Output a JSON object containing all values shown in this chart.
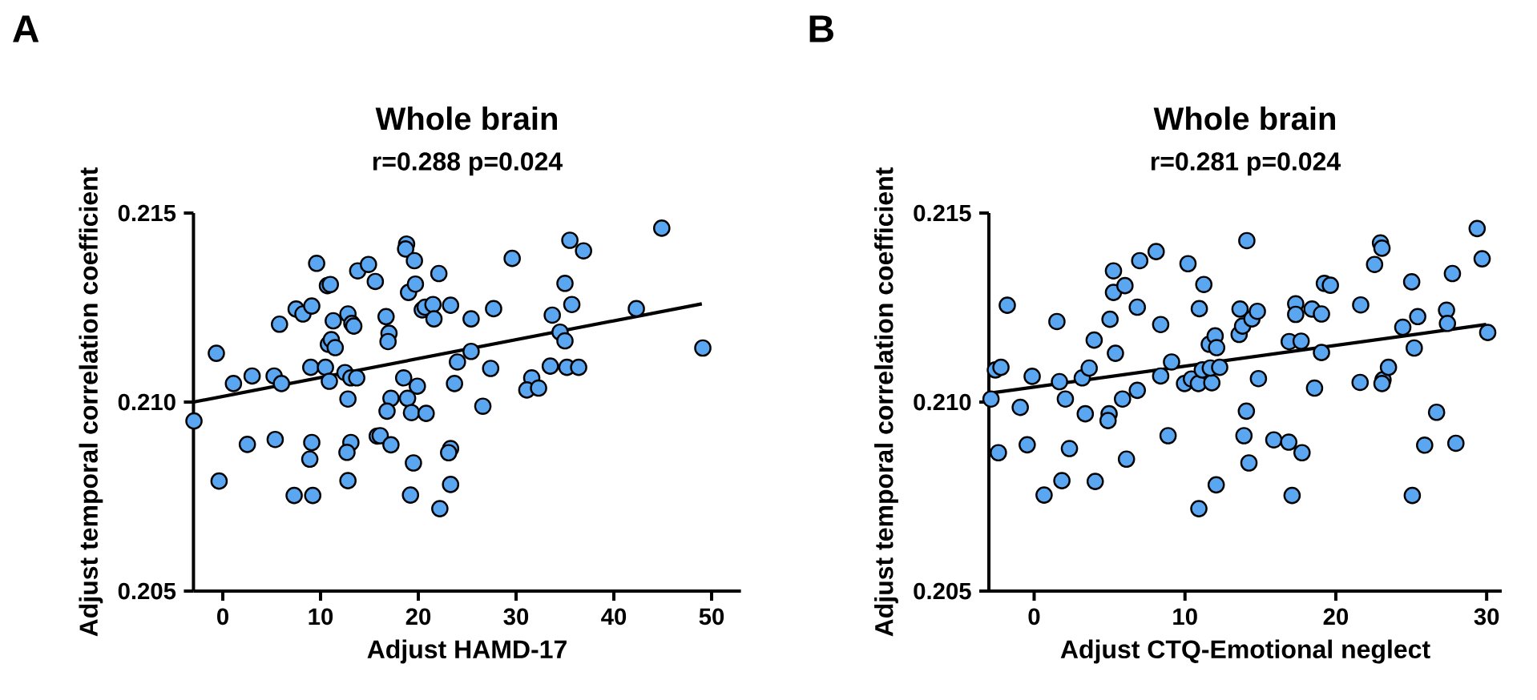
{
  "chart_data": [
    {
      "type": "scatter",
      "title": "Whole brain",
      "subtitle": "r=0.288  p=0.024",
      "xlabel": "Adjust HAMD-17",
      "ylabel": "Adjust temporal correlation coefficient",
      "annotations": [
        "A"
      ],
      "xlim": [
        -3,
        53
      ],
      "ylim": [
        0.205,
        0.215
      ],
      "xticks": [
        0,
        10,
        20,
        30,
        40,
        50
      ],
      "yticks": [
        {
          "value": 0.205,
          "label": "0.205"
        },
        {
          "value": 0.21,
          "label": "0.210"
        },
        {
          "value": 0.215,
          "label": "0.215"
        }
      ],
      "series": [
        {
          "marker": "circle",
          "color": "#5aa6f0",
          "x": [
            -2.95,
            -0.66,
            -0.38,
            1.09,
            2.51,
            3.0,
            5.25,
            5.36,
            6.0,
            5.8,
            7.3,
            7.5,
            8.2,
            9.1,
            9.0,
            9.1,
            8.9,
            9.2,
            9.6,
            10.5,
            10.7,
            11.0,
            10.9,
            11.3,
            10.8,
            11.1,
            11.5,
            12.5,
            12.8,
            13.2,
            13.4,
            13.1,
            13.7,
            12.8,
            13.1,
            12.7,
            12.8,
            13.8,
            14.9,
            15.6,
            16.7,
            17.0,
            16.9,
            15.8,
            16.1,
            17.2,
            16.8,
            17.2,
            18.5,
            18.8,
            18.7,
            19.6,
            19.0,
            19.7,
            20.4,
            20.7,
            21.5,
            21.6,
            22.1,
            23.3,
            19.9,
            18.9,
            19.3,
            20.8,
            19.5,
            19.2,
            22.2,
            23.3,
            23.1,
            23.3,
            24.0,
            23.7,
            25.4,
            25.4,
            27.7,
            27.4,
            26.6,
            29.6,
            33.7,
            34.5,
            35.0,
            33.5,
            35.2,
            36.4,
            31.6,
            31.1,
            32.3,
            35.0,
            35.7,
            35.5,
            36.9,
            42.3,
            44.9,
            49.1
          ],
          "values": [
            0.2095,
            0.21129,
            0.20791,
            0.21049,
            0.20888,
            0.21069,
            0.21069,
            0.20901,
            0.21049,
            0.21206,
            0.20753,
            0.21246,
            0.21233,
            0.21254,
            0.21092,
            0.20893,
            0.20849,
            0.20753,
            0.21367,
            0.21092,
            0.21308,
            0.21311,
            0.21055,
            0.21215,
            0.21153,
            0.21165,
            0.21144,
            0.21078,
            0.21233,
            0.21208,
            0.21201,
            0.21064,
            0.21064,
            0.21008,
            0.20893,
            0.20867,
            0.20792,
            0.21347,
            0.21364,
            0.21319,
            0.21226,
            0.21182,
            0.2116,
            0.2091,
            0.20911,
            0.2101,
            0.20976,
            0.20887,
            0.21064,
            0.21418,
            0.21405,
            0.21374,
            0.2129,
            0.21312,
            0.21244,
            0.21251,
            0.21258,
            0.2122,
            0.2134,
            0.21256,
            0.21042,
            0.2101,
            0.20972,
            0.2097,
            0.20839,
            0.20754,
            0.20718,
            0.20877,
            0.20866,
            0.20782,
            0.21106,
            0.21049,
            0.2122,
            0.21134,
            0.21247,
            0.21089,
            0.20989,
            0.2138,
            0.2123,
            0.21185,
            0.21162,
            0.21095,
            0.21092,
            0.21092,
            0.21064,
            0.21032,
            0.21037,
            0.21314,
            0.21258,
            0.21428,
            0.214,
            0.21247,
            0.2146,
            0.21143
          ]
        },
        {
          "type": "line",
          "marker": "none",
          "color": "#000000",
          "x": [
            -3,
            49
          ],
          "values": [
            0.21,
            0.2126
          ]
        }
      ]
    },
    {
      "type": "scatter",
      "title": "Whole brain",
      "subtitle": "r=0.281  p=0.024",
      "xlabel": "Adjust CTQ-Emotional neglect",
      "ylabel": "Adjust temporal correlation coefficient",
      "annotations": [
        "B"
      ],
      "xlim": [
        -3,
        31
      ],
      "ylim": [
        0.205,
        0.215
      ],
      "xticks": [
        0,
        10,
        20,
        30
      ],
      "yticks": [
        {
          "value": 0.205,
          "label": "0.205"
        },
        {
          "value": 0.21,
          "label": "0.210"
        },
        {
          "value": 0.215,
          "label": "0.215"
        }
      ],
      "series": [
        {
          "marker": "circle",
          "color": "#5aa6f0",
          "x": [
            -2.86,
            -2.57,
            -2.2,
            -1.78,
            -2.37,
            -0.92,
            -0.46,
            -0.13,
            0.66,
            1.51,
            1.68,
            1.84,
            2.07,
            2.34,
            3.19,
            3.39,
            3.65,
            3.98,
            4.05,
            4.97,
            4.9,
            5.03,
            5.26,
            5.26,
            5.39,
            6.02,
            5.86,
            6.12,
            6.84,
            7.0,
            6.84,
            8.09,
            8.39,
            8.39,
            8.88,
            9.11,
            10.2,
            11.25,
            10.95,
            9.97,
            10.43,
            10.89,
            11.15,
            11.78,
            11.68,
            11.61,
            12.0,
            12.1,
            12.3,
            10.92,
            12.07,
            13.59,
            13.82,
            13.65,
            14.44,
            14.8,
            14.1,
            14.87,
            14.07,
            13.91,
            14.24,
            15.89,
            16.88,
            17.76,
            17.1,
            16.91,
            17.7,
            17.34,
            17.34,
            18.42,
            19.05,
            19.24,
            19.64,
            19.05,
            18.59,
            21.65,
            21.61,
            22.57,
            22.96,
            23.06,
            23.13,
            23.49,
            23.06,
            24.44,
            25.03,
            25.43,
            25.2,
            26.68,
            25.89,
            25.07,
            27.73,
            27.34,
            27.4,
            27.96,
            29.37,
            29.7,
            30.07
          ],
          "values": [
            0.21008,
            0.21085,
            0.21092,
            0.21256,
            0.20866,
            0.20986,
            0.20887,
            0.21068,
            0.20754,
            0.21213,
            0.21054,
            0.20792,
            0.21008,
            0.20877,
            0.21064,
            0.20969,
            0.2109,
            0.21164,
            0.2079,
            0.20969,
            0.20951,
            0.21219,
            0.2129,
            0.21347,
            0.21129,
            0.21308,
            0.21008,
            0.20849,
            0.21251,
            0.21374,
            0.21031,
            0.21398,
            0.21205,
            0.21069,
            0.20911,
            0.21106,
            0.21366,
            0.21311,
            0.21247,
            0.21049,
            0.21061,
            0.21049,
            0.21085,
            0.21051,
            0.2109,
            0.21153,
            0.21175,
            0.21144,
            0.21092,
            0.20718,
            0.20781,
            0.21179,
            0.21201,
            0.21246,
            0.2122,
            0.2124,
            0.21427,
            0.21062,
            0.20976,
            0.20911,
            0.20839,
            0.209,
            0.20894,
            0.20866,
            0.20753,
            0.2116,
            0.21161,
            0.2126,
            0.21232,
            0.21246,
            0.21233,
            0.21314,
            0.21309,
            0.21131,
            0.21037,
            0.21257,
            0.21052,
            0.21364,
            0.21421,
            0.21407,
            0.21059,
            0.21092,
            0.21049,
            0.21198,
            0.21318,
            0.21226,
            0.21143,
            0.20973,
            0.20886,
            0.20753,
            0.2134,
            0.21243,
            0.21208,
            0.20891,
            0.21459,
            0.21379,
            0.21184
          ]
        },
        {
          "type": "line",
          "marker": "none",
          "color": "#000000",
          "x": [
            -2.86,
            29.97
          ],
          "values": [
            0.21024,
            0.21205
          ]
        }
      ]
    }
  ]
}
